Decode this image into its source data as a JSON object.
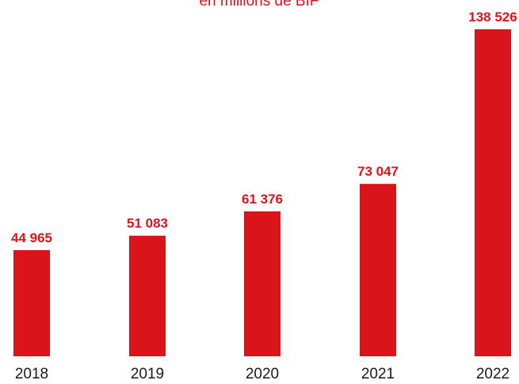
{
  "chart_data": {
    "type": "bar",
    "subtitle": "en millions de BIF",
    "categories": [
      "2018",
      "2019",
      "2020",
      "2021",
      "2022"
    ],
    "values": [
      44965,
      51083,
      61376,
      73047,
      138526
    ],
    "value_labels": [
      "44 965",
      "51 083",
      "61 376",
      "73 047",
      "138 526"
    ],
    "title": "",
    "xlabel": "",
    "ylabel": "",
    "ylim": [
      0,
      138526
    ],
    "grid": false,
    "legend": "none",
    "bar_color": "#d9151b"
  }
}
